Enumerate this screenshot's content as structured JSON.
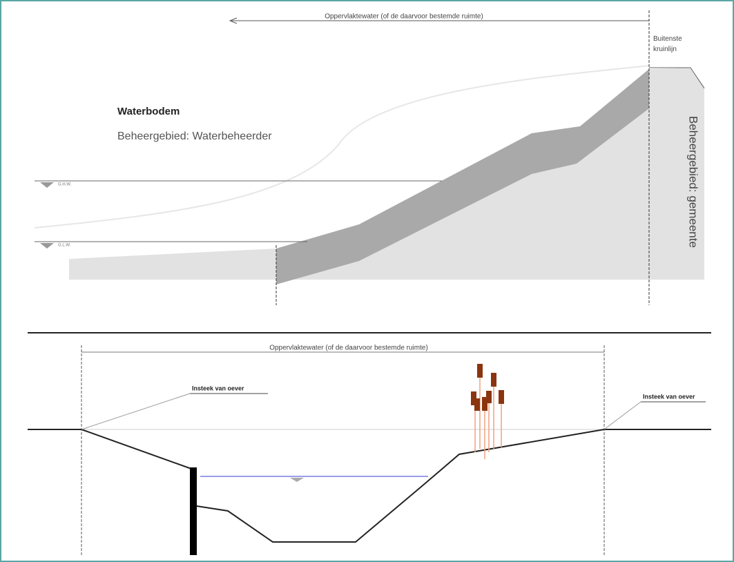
{
  "top": {
    "dimension": "Oppervlaktewater (of de daarvoor bestemde ruimte)",
    "kruinlijn": [
      "Buitenste",
      "kruinlijn"
    ],
    "title": "Waterbodem",
    "subtitle": "Beheergebied: Waterbeheerder",
    "side": "Beheergebied: gemeente",
    "ghw": "G.H.W.",
    "glw": "G.L.W."
  },
  "bottom": {
    "dimension": "Oppervlaktewater (of de daarvoor bestemde ruimte)",
    "left_label": "Insteek van oever",
    "right_label": "Insteek van oever"
  }
}
